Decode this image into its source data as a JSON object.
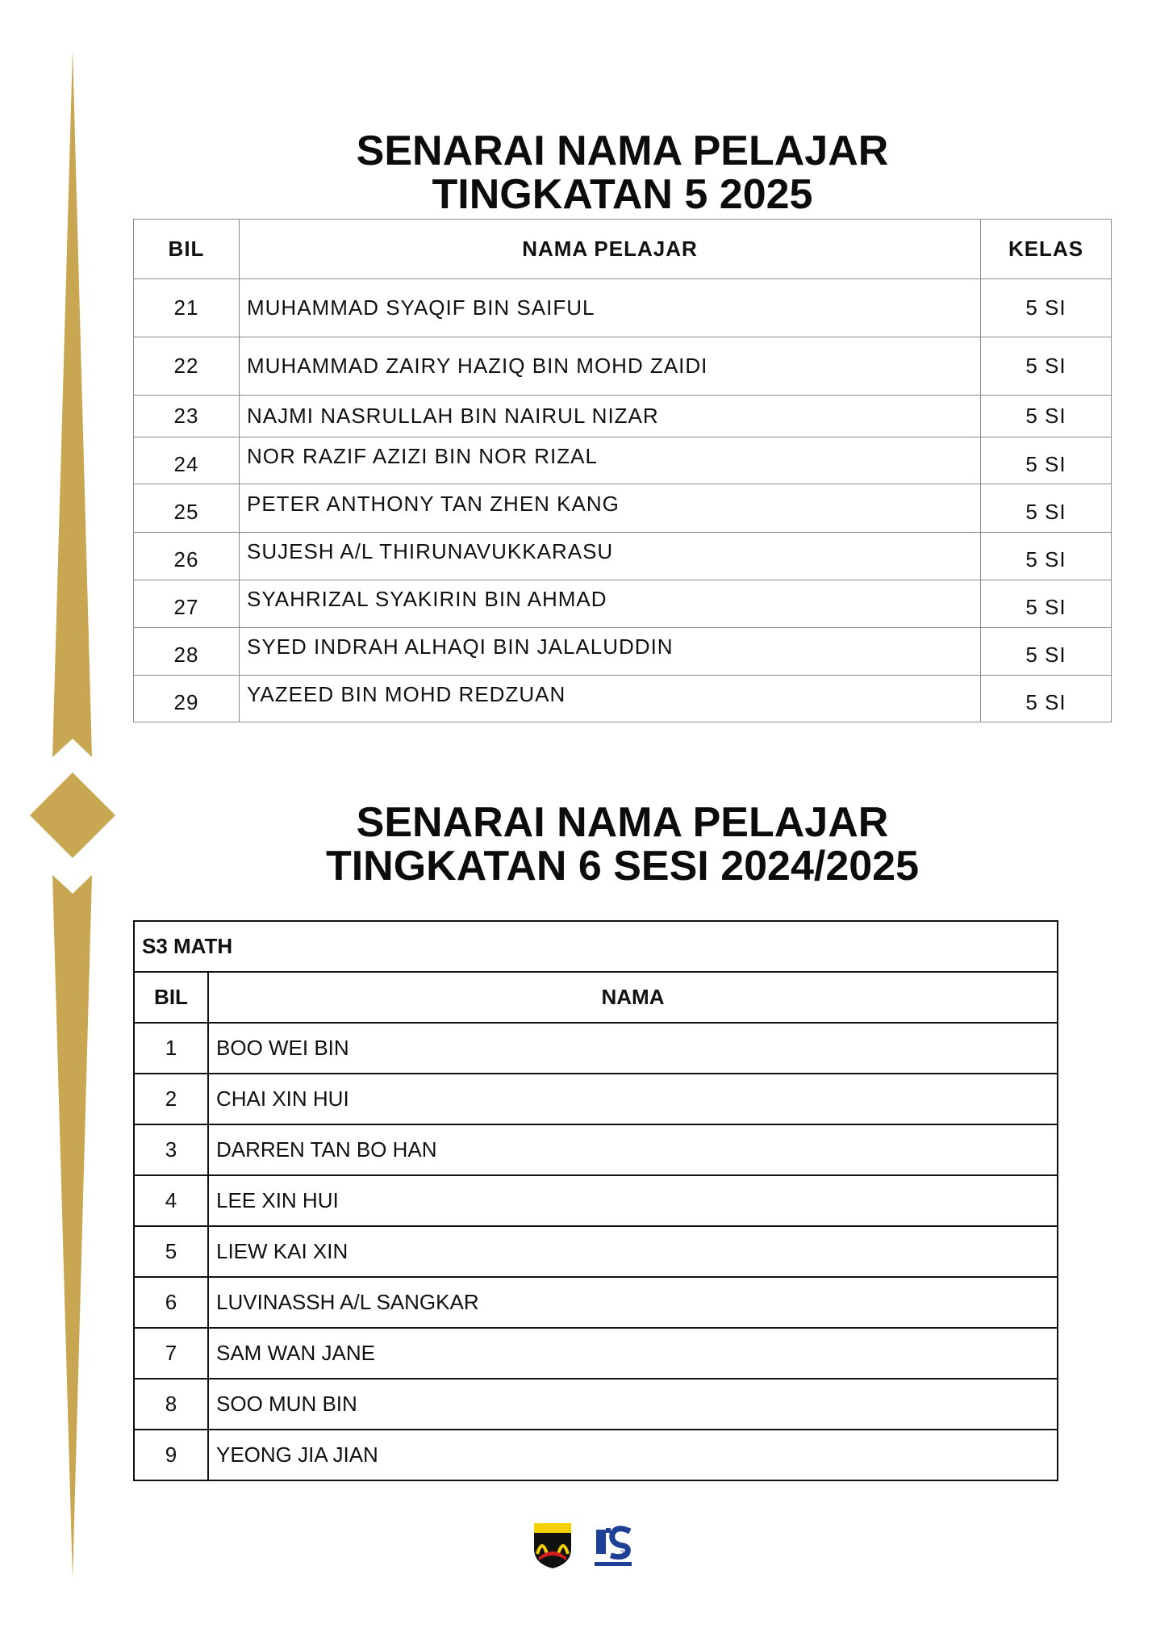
{
  "section1": {
    "title_line1": "SENARAI NAMA PELAJAR",
    "title_line2": "TINGKATAN 5 2025",
    "headers": [
      "BIL",
      "NAMA PELAJAR",
      "KELAS"
    ],
    "rows": [
      {
        "bil": "21",
        "name": "MUHAMMAD SYAQIF BIN SAIFUL",
        "kelas": "5 SI"
      },
      {
        "bil": "22",
        "name": "MUHAMMAD ZAIRY HAZIQ BIN MOHD ZAIDI",
        "kelas": "5 SI"
      },
      {
        "bil": "23",
        "name": "NAJMI NASRULLAH BIN NAIRUL NIZAR",
        "kelas": "5 SI"
      },
      {
        "bil": "24",
        "name": "NOR RAZIF AZIZI BIN NOR RIZAL",
        "kelas": "5 SI"
      },
      {
        "bil": "25",
        "name": "PETER ANTHONY TAN ZHEN KANG",
        "kelas": "5 SI"
      },
      {
        "bil": "26",
        "name": "SUJESH A/L THIRUNAVUKKARASU",
        "kelas": "5 SI"
      },
      {
        "bil": "27",
        "name": "SYAHRIZAL SYAKIRIN BIN AHMAD",
        "kelas": "5 SI"
      },
      {
        "bil": "28",
        "name": "SYED INDRAH ALHAQI BIN JALALUDDIN",
        "kelas": "5 SI"
      },
      {
        "bil": "29",
        "name": "YAZEED BIN MOHD REDZUAN",
        "kelas": "5 SI"
      }
    ]
  },
  "section2": {
    "title_line1": "SENARAI NAMA PELAJAR",
    "title_line2": "TINGKATAN 6 SESI 2024/2025",
    "group": "S3 MATH",
    "headers": [
      "BIL",
      "NAMA"
    ],
    "rows": [
      {
        "bil": "1",
        "name": "BOO WEI BIN"
      },
      {
        "bil": "2",
        "name": "CHAI XIN HUI"
      },
      {
        "bil": "3",
        "name": "DARREN TAN BO HAN"
      },
      {
        "bil": "4",
        "name": "LEE XIN HUI"
      },
      {
        "bil": "5",
        "name": "LIEW KAI XIN"
      },
      {
        "bil": "6",
        "name": "LUVINASSH A/L SANGKAR"
      },
      {
        "bil": "7",
        "name": "SAM WAN JANE"
      },
      {
        "bil": "8",
        "name": "SOO MUN BIN"
      },
      {
        "bil": "9",
        "name": "YEONG JIA JIAN"
      }
    ]
  },
  "colors": {
    "ornament_gold": "#c9a752"
  },
  "logos": [
    "school-crest-logo",
    "anniversary-25-logo"
  ]
}
